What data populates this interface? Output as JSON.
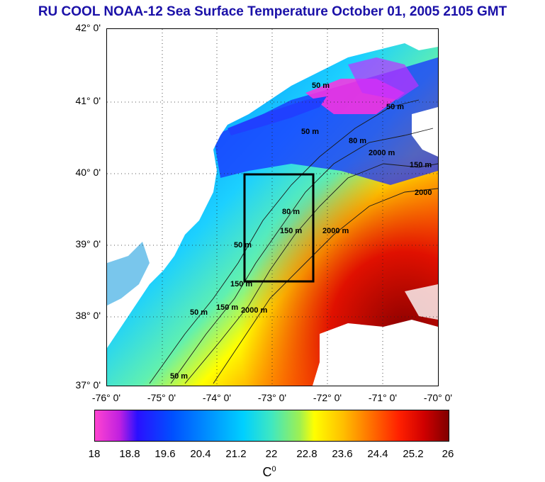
{
  "title": "RU COOL  NOAA-12 Sea Surface Temperature October 01, 2005 2105 GMT",
  "lat_ticks": [
    "42° 0'",
    "41° 0'",
    "40° 0'",
    "39° 0'",
    "38° 0'",
    "37° 0'"
  ],
  "lon_ticks": [
    "-76° 0'",
    "-75° 0'",
    "-74° 0'",
    "-73° 0'",
    "-72° 0'",
    "-71° 0'",
    "-70° 0'"
  ],
  "contour_labels": [
    "50 m",
    "80 m",
    "150 m",
    "2000",
    "50 m",
    "50 m",
    "80 m",
    "150 m",
    "2000 m",
    "50 m",
    "150 m",
    "2000 m",
    "50 m",
    "150 m",
    "2000 m",
    "50 m"
  ],
  "colorbar": {
    "ticks": [
      "18",
      "18.8",
      "19.6",
      "20.4",
      "21.2",
      "22",
      "22.8",
      "23.6",
      "24.4",
      "25.2",
      "26"
    ],
    "unit": "C",
    "unit_sup": "0",
    "min": 18,
    "max": 26
  },
  "colors": {
    "title": "#1a10a8",
    "land": "#ffffff",
    "box": "#000000"
  }
}
